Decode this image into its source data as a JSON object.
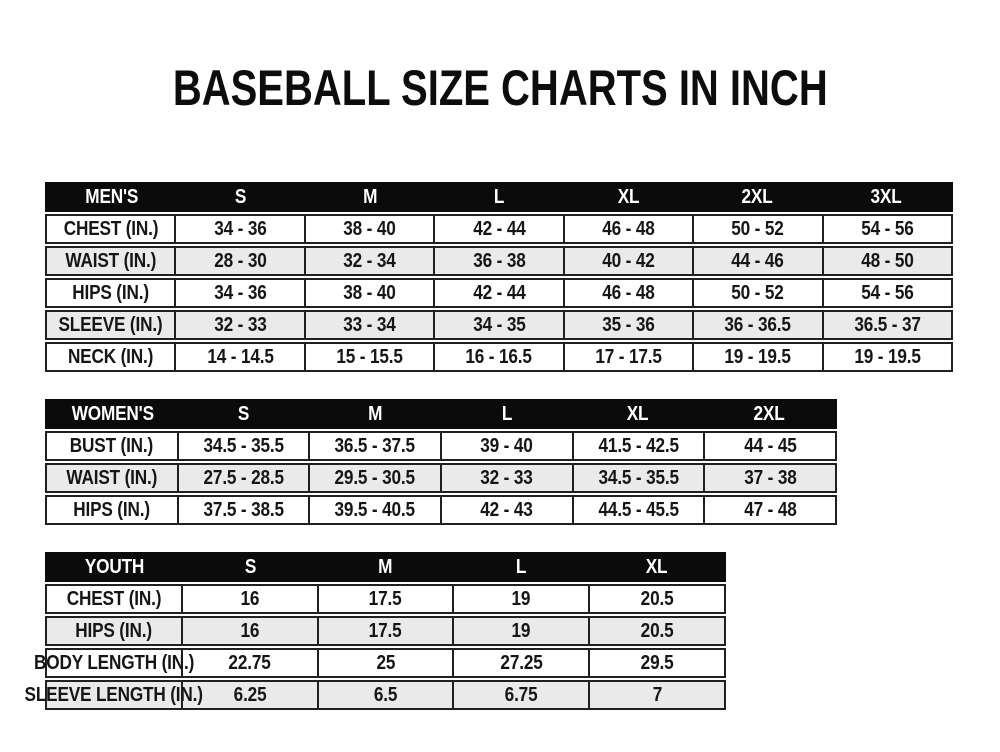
{
  "page": {
    "title": "BASEBALL SIZE CHARTS IN INCH"
  },
  "colors": {
    "header_bg": "#0b0b0b",
    "header_text": "#ffffff",
    "row_bg": "#ffffff",
    "row_alt_bg": "#eaeaea",
    "border": "#202020",
    "text": "#161616",
    "page_bg": "#ffffff"
  },
  "chart_data": [
    {
      "type": "table",
      "id": "mens",
      "title": "MEN'S",
      "columns": [
        "S",
        "M",
        "L",
        "XL",
        "2XL",
        "3XL"
      ],
      "rows": [
        {
          "label": "CHEST (IN.)",
          "values": [
            "34 - 36",
            "38 - 40",
            "42 - 44",
            "46 - 48",
            "50 - 52",
            "54 - 56"
          ]
        },
        {
          "label": "WAIST (IN.)",
          "values": [
            "28 - 30",
            "32 - 34",
            "36 - 38",
            "40 - 42",
            "44 - 46",
            "48 - 50"
          ]
        },
        {
          "label": "HIPS (IN.)",
          "values": [
            "34 - 36",
            "38 - 40",
            "42 - 44",
            "46 - 48",
            "50 - 52",
            "54 - 56"
          ]
        },
        {
          "label": "SLEEVE (IN.)",
          "values": [
            "32 - 33",
            "33 - 34",
            "34 - 35",
            "35 - 36",
            "36 - 36.5",
            "36.5 - 37"
          ]
        },
        {
          "label": "NECK (IN.)",
          "values": [
            "14 - 14.5",
            "15 - 15.5",
            "16 - 16.5",
            "17 - 17.5",
            "19 - 19.5",
            "19 - 19.5"
          ]
        }
      ]
    },
    {
      "type": "table",
      "id": "womens",
      "title": "WOMEN'S",
      "columns": [
        "S",
        "M",
        "L",
        "XL",
        "2XL"
      ],
      "rows": [
        {
          "label": "BUST (IN.)",
          "values": [
            "34.5 - 35.5",
            "36.5 - 37.5",
            "39 - 40",
            "41.5 - 42.5",
            "44 - 45"
          ]
        },
        {
          "label": "WAIST (IN.)",
          "values": [
            "27.5 - 28.5",
            "29.5 - 30.5",
            "32 - 33",
            "34.5 - 35.5",
            "37 - 38"
          ]
        },
        {
          "label": "HIPS (IN.)",
          "values": [
            "37.5 - 38.5",
            "39.5 - 40.5",
            "42 - 43",
            "44.5 - 45.5",
            "47 - 48"
          ]
        }
      ]
    },
    {
      "type": "table",
      "id": "youth",
      "title": "YOUTH",
      "columns": [
        "S",
        "M",
        "L",
        "XL"
      ],
      "rows": [
        {
          "label": "CHEST (IN.)",
          "values": [
            "16",
            "17.5",
            "19",
            "20.5"
          ]
        },
        {
          "label": "HIPS (IN.)",
          "values": [
            "16",
            "17.5",
            "19",
            "20.5"
          ]
        },
        {
          "label": "BODY LENGTH (IN.)",
          "values": [
            "22.75",
            "25",
            "27.25",
            "29.5"
          ]
        },
        {
          "label": "SLEEVE LENGTH (IN.)",
          "values": [
            "6.25",
            "6.5",
            "6.75",
            "7"
          ]
        }
      ]
    }
  ]
}
